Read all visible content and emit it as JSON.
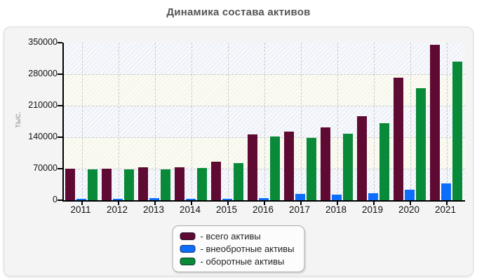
{
  "page": {
    "background": "#ffffff",
    "panel_background": "#f4f4f4"
  },
  "chart_data": {
    "type": "bar",
    "title": "Динамика состава активов",
    "xlabel": "",
    "ylabel": "тыс.",
    "categories": [
      "2011",
      "2012",
      "2013",
      "2014",
      "2015",
      "2016",
      "2017",
      "2018",
      "2019",
      "2020",
      "2021"
    ],
    "series": [
      {
        "name": "- всего активы",
        "color": "#5f0a33",
        "values": [
          70000,
          70500,
          73000,
          73000,
          85000,
          146000,
          153000,
          161000,
          186000,
          272000,
          345000
        ]
      },
      {
        "name": "- внеобротные активы",
        "color": "#0d6efd",
        "values": [
          2000,
          2500,
          4500,
          2000,
          3000,
          4500,
          14000,
          13000,
          15000,
          23000,
          37000
        ]
      },
      {
        "name": "- оборотные активы",
        "color": "#088a38",
        "values": [
          68000,
          68000,
          69000,
          71000,
          82500,
          142000,
          139000,
          148000,
          171000,
          249000,
          308000
        ]
      }
    ],
    "ylim": [
      0,
      350000
    ],
    "yticks": [
      0,
      70000,
      140000,
      210000,
      280000,
      350000
    ],
    "ytick_labels": [
      "0",
      "70000",
      "140000",
      "210000",
      "280000",
      "350000"
    ],
    "grid": "dashed",
    "legend_position": "bottom-center",
    "band_colors": {
      "cool": "#eef1f8",
      "warm": "#f6f6ea"
    }
  }
}
